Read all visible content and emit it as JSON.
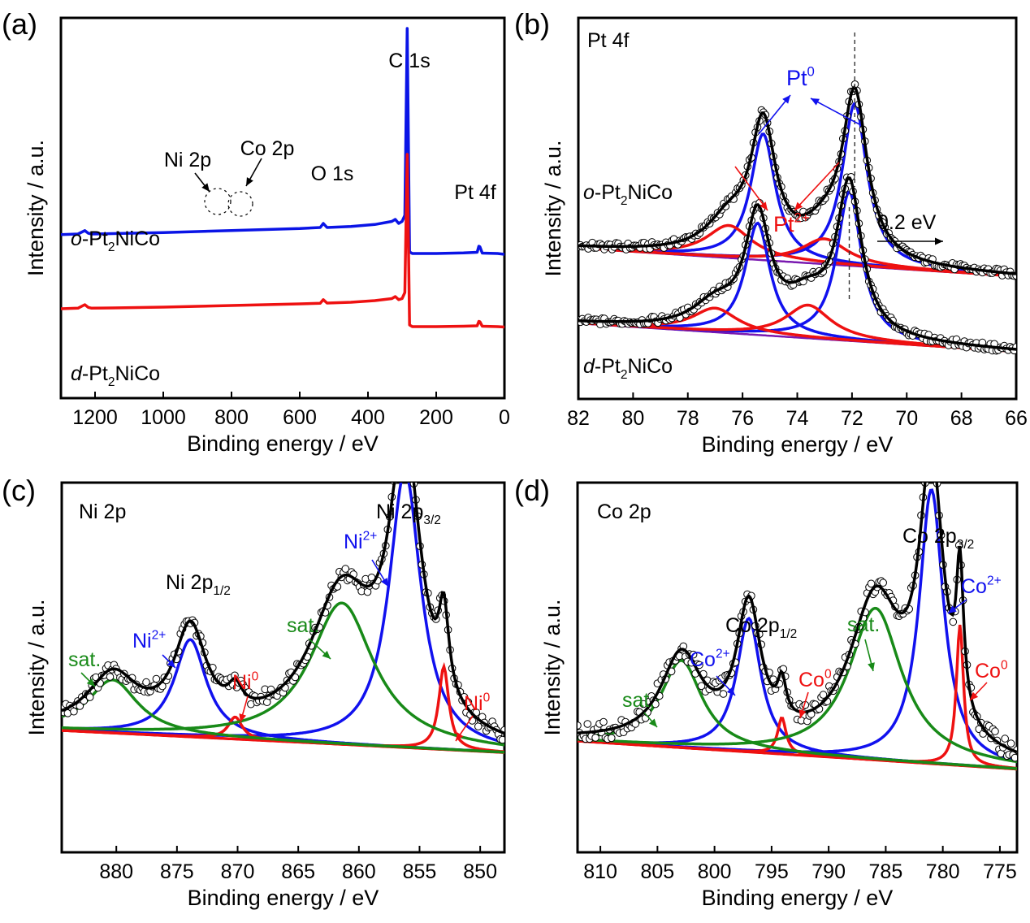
{
  "chart_data": [
    {
      "panel": "(a)",
      "type": "line",
      "xlabel": "Binding energy / eV",
      "ylabel": "Intensity / a.u.",
      "xlim": [
        1300,
        0
      ],
      "x_reversed": true,
      "xticks": [
        1200,
        1000,
        800,
        600,
        400,
        200,
        0
      ],
      "yticks": "none",
      "grid": false,
      "series": [
        {
          "name": "o-Pt2NiCo",
          "label_parts": [
            "o",
            "-Pt",
            "2",
            "NiCo"
          ],
          "color": "#0a14e6",
          "x": [
            1300,
            1250,
            1230,
            1220,
            1210,
            1150,
            1000,
            900,
            800,
            700,
            600,
            540,
            531,
            520,
            450,
            380,
            330,
            320,
            310,
            300,
            292,
            285,
            278,
            270,
            200,
            120,
            80,
            75,
            72,
            65,
            20,
            0
          ],
          "y": [
            0.805,
            0.808,
            0.825,
            0.812,
            0.808,
            0.81,
            0.815,
            0.82,
            0.825,
            0.83,
            0.835,
            0.84,
            0.86,
            0.84,
            0.845,
            0.855,
            0.87,
            0.88,
            0.86,
            0.87,
            0.9,
            1.82,
            0.72,
            0.712,
            0.712,
            0.715,
            0.718,
            0.748,
            0.745,
            0.714,
            0.712,
            0.708
          ]
        },
        {
          "name": "d-Pt2NiCo",
          "label_parts": [
            "d",
            "-Pt",
            "2",
            "NiCo"
          ],
          "color": "#ee1111",
          "x": [
            1300,
            1250,
            1230,
            1220,
            1210,
            1150,
            1000,
            900,
            800,
            700,
            600,
            540,
            531,
            520,
            450,
            380,
            330,
            320,
            310,
            300,
            292,
            285,
            278,
            270,
            200,
            120,
            80,
            75,
            72,
            65,
            20,
            0
          ],
          "y": [
            0.44,
            0.443,
            0.46,
            0.447,
            0.443,
            0.444,
            0.448,
            0.452,
            0.456,
            0.46,
            0.464,
            0.467,
            0.485,
            0.468,
            0.472,
            0.48,
            0.49,
            0.5,
            0.485,
            0.49,
            0.52,
            1.2,
            0.36,
            0.352,
            0.352,
            0.354,
            0.356,
            0.378,
            0.376,
            0.354,
            0.352,
            0.35
          ]
        }
      ],
      "annotations": [
        {
          "text": "C 1s",
          "x": 285,
          "y": 1.9
        },
        {
          "text": "O 1s",
          "x": 530,
          "y": 0.93
        },
        {
          "text": "Pt 4f",
          "x": 70,
          "y": 0.8
        },
        {
          "text": "Ni 2p",
          "x": 860,
          "y": 0.97
        },
        {
          "text": "Co 2p",
          "x": 780,
          "y": 1.0
        }
      ]
    },
    {
      "panel": "(b)",
      "type": "line",
      "title": "Pt 4f",
      "xlabel": "Binding energy / eV",
      "ylabel": "Intensity / a.u.",
      "xlim": [
        82,
        66
      ],
      "x_reversed": true,
      "xticks": [
        82,
        80,
        78,
        76,
        74,
        72,
        70,
        68,
        66
      ],
      "yticks": "none",
      "grid": false,
      "samples": [
        {
          "name": "o-Pt2NiCo",
          "label_parts": [
            "o",
            "-Pt",
            "2",
            "NiCo"
          ],
          "baseline": {
            "a": 0.53,
            "b": 0.47
          },
          "offset": 1.25,
          "peaks": [
            {
              "label": "Pt0",
              "color": "#1111ee",
              "center": 71.9,
              "height": 2.7,
              "width": 0.55
            },
            {
              "label": "Pt0",
              "color": "#1111ee",
              "center": 75.25,
              "height": 2.1,
              "width": 0.55
            },
            {
              "label": "Pt2+",
              "color": "#ee1111",
              "center": 73.0,
              "height": 0.42,
              "width": 1.0
            },
            {
              "label": "Pt2+",
              "color": "#ee1111",
              "center": 76.5,
              "height": 0.54,
              "width": 1.0
            }
          ]
        },
        {
          "name": "d-Pt2NiCo",
          "label_parts": [
            "d",
            "-Pt",
            "2",
            "NiCo"
          ],
          "baseline": {
            "a": 0.53,
            "b": 0.47
          },
          "offset": 0.0,
          "peaks": [
            {
              "label": "Pt0",
              "color": "#1111ee",
              "center": 72.1,
              "height": 2.48,
              "width": 0.55
            },
            {
              "label": "Pt0",
              "color": "#1111ee",
              "center": 75.45,
              "height": 1.86,
              "width": 0.55
            },
            {
              "label": "Pt2+",
              "color": "#ee1111",
              "center": 73.6,
              "height": 0.55,
              "width": 1.0
            },
            {
              "label": "Pt2+",
              "color": "#ee1111",
              "center": 77.0,
              "height": 0.4,
              "width": 1.0
            }
          ]
        }
      ],
      "legend": {
        "fit": "black line",
        "data": "open circles",
        "Pt0": "blue",
        "Pt2+": "red"
      },
      "annotations": [
        {
          "text": "Pt0",
          "text_parts": [
            "Pt",
            "0"
          ],
          "color": "#1111ee"
        },
        {
          "text": "Pt2+",
          "text_parts": [
            "Pt",
            "2+"
          ],
          "color": "#ee1111"
        },
        {
          "text": "0.2 eV",
          "color": "#000000"
        }
      ],
      "dashed_lines_x": [
        71.9,
        72.1
      ]
    },
    {
      "panel": "(c)",
      "type": "line",
      "title": "Ni 2p",
      "xlabel": "Binding energy / eV",
      "ylabel": "Intensity / a.u.",
      "xlim": [
        884.5,
        848
      ],
      "x_reversed": true,
      "xticks": [
        880,
        875,
        870,
        865,
        860,
        855,
        850
      ],
      "yticks": "none",
      "grid": false,
      "baseline": {
        "a": 0.8,
        "b": 0.2
      },
      "peaks": [
        {
          "label": "Ni2+",
          "color": "#1111ee",
          "center": 856.2,
          "height": 2.5,
          "width": 1.6
        },
        {
          "label": "Ni2+",
          "color": "#1111ee",
          "center": 873.9,
          "height": 0.88,
          "width": 1.6
        },
        {
          "label": "Ni0",
          "color": "#ee1111",
          "center": 853.0,
          "height": 0.75,
          "width": 0.5
        },
        {
          "label": "Ni0",
          "color": "#ee1111",
          "center": 870.2,
          "height": 0.2,
          "width": 0.7
        },
        {
          "label": "sat.",
          "color": "#188a18",
          "center": 861.4,
          "height": 1.28,
          "width": 3.2
        },
        {
          "label": "sat.",
          "color": "#188a18",
          "center": 880.3,
          "height": 0.48,
          "width": 2.5
        }
      ],
      "annotations": [
        {
          "text": "Ni 2p3/2",
          "text_parts": [
            "Ni 2p",
            "3/2"
          ],
          "color": "#000000"
        },
        {
          "text": "Ni 2p1/2",
          "text_parts": [
            "Ni 2p",
            "1/2"
          ],
          "color": "#000000"
        },
        {
          "text": "Ni2+",
          "text_parts": [
            "Ni",
            "2+"
          ],
          "color": "#1111ee"
        },
        {
          "text": "Ni0",
          "text_parts": [
            "Ni",
            "0"
          ],
          "color": "#ee1111"
        },
        {
          "text": "sat.",
          "color": "#188a18"
        }
      ]
    },
    {
      "panel": "(d)",
      "type": "line",
      "title": "Co 2p",
      "xlabel": "Binding energy / eV",
      "ylabel": "Intensity / a.u.",
      "xlim": [
        812,
        773.5
      ],
      "x_reversed": true,
      "xticks": [
        810,
        805,
        800,
        795,
        790,
        785,
        780,
        775
      ],
      "yticks": "none",
      "grid": false,
      "baseline": {
        "a": 0.8,
        "b": 0.2
      },
      "peaks": [
        {
          "label": "Co2+",
          "color": "#1111ee",
          "center": 781.0,
          "height": 1.95,
          "width": 1.3
        },
        {
          "label": "Co2+",
          "color": "#1111ee",
          "center": 797.0,
          "height": 0.95,
          "width": 1.3
        },
        {
          "label": "Co0",
          "color": "#ee1111",
          "center": 778.5,
          "height": 1.0,
          "width": 0.38
        },
        {
          "label": "Co0",
          "color": "#ee1111",
          "center": 794.1,
          "height": 0.26,
          "width": 0.45
        },
        {
          "label": "sat.",
          "color": "#188a18",
          "center": 785.9,
          "height": 1.08,
          "width": 2.8
        },
        {
          "label": "sat.",
          "color": "#188a18",
          "center": 802.9,
          "height": 0.62,
          "width": 2.2
        }
      ],
      "annotations": [
        {
          "text": "Co 2p3/2",
          "text_parts": [
            "Co 2p",
            "3/2"
          ],
          "color": "#000000"
        },
        {
          "text": "Co 2p1/2",
          "text_parts": [
            "Co 2p",
            "1/2"
          ],
          "color": "#000000"
        },
        {
          "text": "Co2+",
          "text_parts": [
            "Co",
            "2+"
          ],
          "color": "#1111ee"
        },
        {
          "text": "Co0",
          "text_parts": [
            "Co",
            "0"
          ],
          "color": "#ee1111"
        },
        {
          "text": "sat.",
          "color": "#188a18"
        }
      ]
    }
  ],
  "panel_labels": [
    "(a)",
    "(b)",
    "(c)",
    "(d)"
  ],
  "colors": {
    "fit": "#000000",
    "pt0": "#1111ee",
    "pt2": "#ee1111",
    "sat": "#188a18",
    "o_survey": "#0a14e6",
    "d_survey": "#ee1111"
  }
}
